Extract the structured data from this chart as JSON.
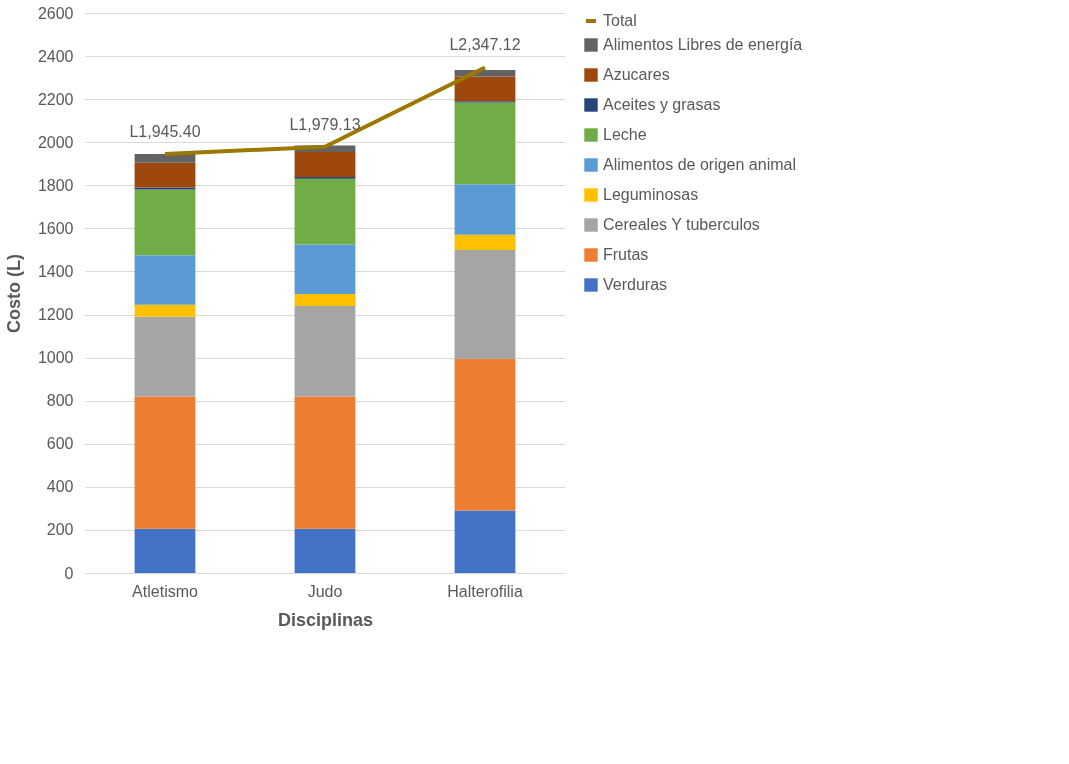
{
  "chart_data": {
    "type": "bar",
    "stacked": true,
    "xlabel": "Disciplinas",
    "ylabel": "Costo (L)",
    "categories": [
      "Atletismo",
      "Judo",
      "Halterofilia"
    ],
    "ylim": [
      0,
      2600
    ],
    "yticks": [
      0,
      200,
      400,
      600,
      800,
      1000,
      1200,
      1400,
      1600,
      1800,
      2000,
      2200,
      2400,
      2600
    ],
    "grid": "y",
    "legend": "right",
    "series": [
      {
        "name": "Verduras",
        "color": "#4472c4",
        "values": [
          205,
          205,
          290
        ]
      },
      {
        "name": "Frutas",
        "color": "#ed7d31",
        "values": [
          615,
          615,
          705
        ]
      },
      {
        "name": "Cereales Y tuberculos",
        "color": "#a5a5a5",
        "values": [
          370,
          420,
          505
        ]
      },
      {
        "name": "Leguminosas",
        "color": "#ffc000",
        "values": [
          55,
          55,
          70
        ]
      },
      {
        "name": "Alimentos de origen animal",
        "color": "#5b9bd5",
        "values": [
          230,
          230,
          235
        ]
      },
      {
        "name": "Leche",
        "color": "#70ad47",
        "values": [
          305,
          305,
          380
        ]
      },
      {
        "name": "Aceites y grasas",
        "color": "#264478",
        "values": [
          10,
          8,
          5
        ]
      },
      {
        "name": "Azucares",
        "color": "#9e480e",
        "values": [
          115,
          117,
          115
        ]
      },
      {
        "name": "Alimentos Libres de energía",
        "color": "#636363",
        "values": [
          40,
          30,
          30
        ]
      },
      {
        "name": "Total",
        "type": "line",
        "color": "#9c7800",
        "values": [
          1945.4,
          1979.13,
          2347.12
        ],
        "value_labels": [
          "L1,945.40",
          "L1,979.13",
          "L2,347.12"
        ]
      }
    ]
  }
}
